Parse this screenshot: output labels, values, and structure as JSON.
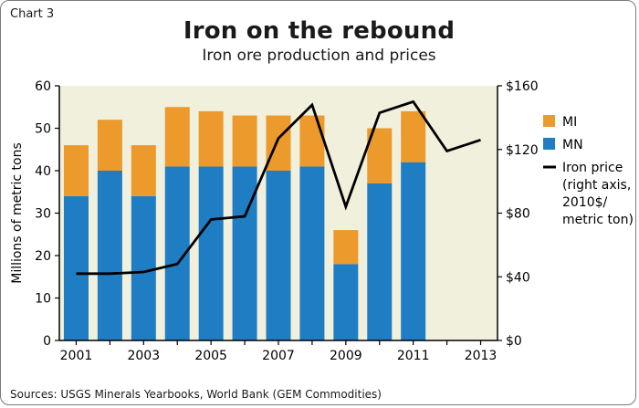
{
  "figure": {
    "label": "Chart 3",
    "title": "Iron on the rebound",
    "subtitle": "Iron ore production and prices",
    "source": "Sources: USGS Minerals Yearbooks, World Bank (GEM Commodities)"
  },
  "colors": {
    "background": "#f1f0dc",
    "mn": "#1f7dc4",
    "mi": "#ec9a2b",
    "price_line": "#000000"
  },
  "chart_data": {
    "type": "bar",
    "stacked": true,
    "x": [
      2001,
      2002,
      2003,
      2004,
      2005,
      2006,
      2007,
      2008,
      2009,
      2010,
      2011,
      2012,
      2013
    ],
    "xticks": [
      "2001",
      "2003",
      "2005",
      "2007",
      "2009",
      "2011",
      "2013"
    ],
    "ylabel": "Millions of metric tons",
    "ylim": [
      0,
      60
    ],
    "yticks": [
      "0",
      "10",
      "20",
      "30",
      "40",
      "50",
      "60"
    ],
    "y2lim": [
      0,
      160
    ],
    "y2ticks": [
      "$0",
      "$40",
      "$80",
      "$120",
      "$160"
    ],
    "series": [
      {
        "name": "MN",
        "type": "bar",
        "axis": "left",
        "values": [
          34,
          40,
          34,
          41,
          41,
          41,
          40,
          41,
          18,
          37,
          42,
          null,
          null
        ]
      },
      {
        "name": "MI",
        "type": "bar",
        "axis": "left",
        "values": [
          12,
          12,
          12,
          14,
          13,
          12,
          13,
          12,
          8,
          13,
          12,
          null,
          null
        ]
      },
      {
        "name": "Iron price\n(right axis,\n2010$/\nmetric ton)",
        "type": "line",
        "axis": "right",
        "values": [
          42,
          42,
          43,
          48,
          76,
          78,
          127,
          148,
          84,
          143,
          150,
          119,
          126
        ]
      }
    ],
    "legend": {
      "position": "right",
      "items": [
        {
          "label": "MI",
          "series": "MI"
        },
        {
          "label": "MN",
          "series": "MN"
        },
        {
          "label_lines": [
            "Iron price",
            "(right axis,",
            "2010$/",
            "metric ton)"
          ],
          "series": "price"
        }
      ]
    },
    "grid": false
  }
}
